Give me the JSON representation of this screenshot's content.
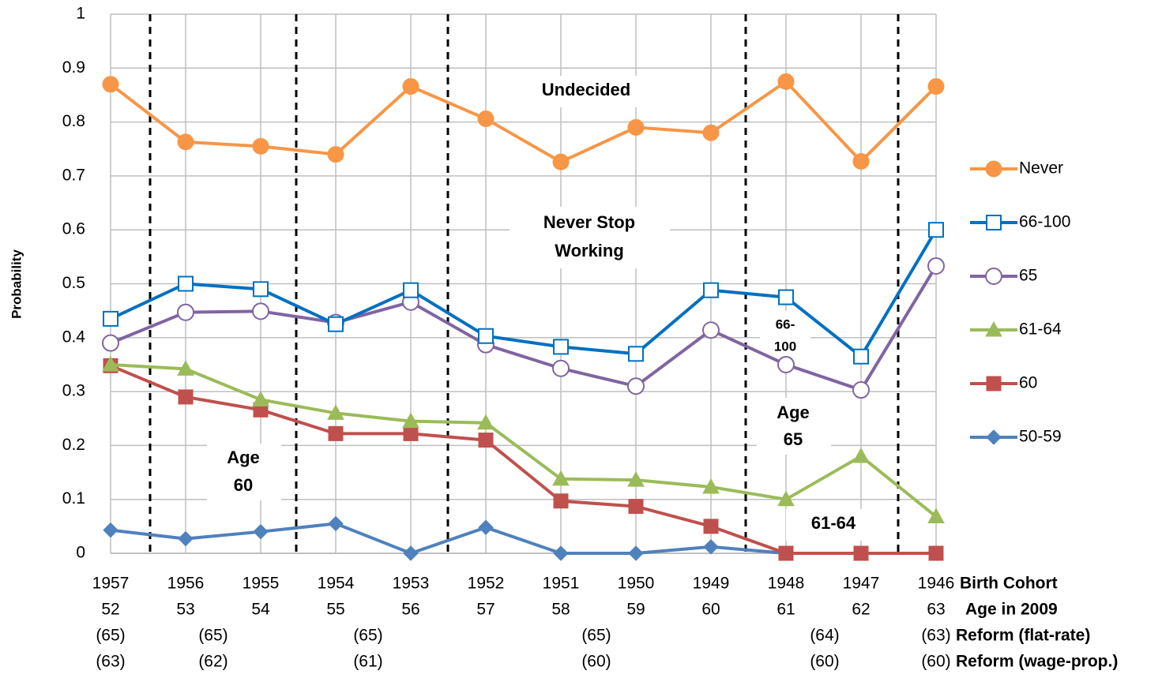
{
  "chart_data": {
    "type": "line",
    "y_label": "Probability",
    "categories": [
      "1957",
      "1956",
      "1955",
      "1954",
      "1953",
      "1952",
      "1951",
      "1950",
      "1949",
      "1948",
      "1947",
      "1946"
    ],
    "category_label": "Birth Cohort",
    "ages": [
      52,
      53,
      54,
      55,
      56,
      57,
      58,
      59,
      60,
      61,
      62,
      63
    ],
    "ages_label": "Age in 2009",
    "reform_rows": [
      {
        "name": "Reform (flat-rate)",
        "labels": [
          "(65)",
          "(65)",
          "(65)",
          "(65)",
          "(64)",
          "(63)"
        ]
      },
      {
        "name": "Reform (wage-prop.)",
        "labels": [
          "(63)",
          "(62)",
          "(61)",
          "(60)",
          "(60)",
          "(60)"
        ]
      }
    ],
    "ylim": [
      0,
      1
    ],
    "yticks": [
      0,
      0.1,
      0.2,
      0.3,
      0.4,
      0.5,
      0.6,
      0.7,
      0.8,
      0.9,
      1
    ],
    "grid": true,
    "legend": "right",
    "series": [
      {
        "name": "Never",
        "color": "#f79646",
        "marker": "circle",
        "filled": true,
        "values": [
          0.87,
          0.763,
          0.755,
          0.74,
          0.866,
          0.806,
          0.726,
          0.79,
          0.78,
          0.875,
          0.727,
          0.866
        ]
      },
      {
        "name": "66-100",
        "color": "#0070c0",
        "marker": "square",
        "filled": false,
        "values": [
          0.435,
          0.5,
          0.49,
          0.425,
          0.488,
          0.403,
          0.383,
          0.37,
          0.488,
          0.475,
          0.365,
          0.6
        ]
      },
      {
        "name": "65",
        "color": "#8064a2",
        "marker": "circle",
        "filled": false,
        "values": [
          0.39,
          0.447,
          0.449,
          0.428,
          0.466,
          0.387,
          0.343,
          0.31,
          0.414,
          0.35,
          0.303,
          0.533
        ]
      },
      {
        "name": "61-64",
        "color": "#9bbb59",
        "marker": "triangle",
        "filled": true,
        "values": [
          0.35,
          0.342,
          0.285,
          0.26,
          0.245,
          0.242,
          0.138,
          0.136,
          0.123,
          0.1,
          0.18,
          0.068
        ]
      },
      {
        "name": "60",
        "color": "#c0504d",
        "marker": "square",
        "filled": true,
        "values": [
          0.348,
          0.29,
          0.266,
          0.222,
          0.222,
          0.21,
          0.097,
          0.087,
          0.05,
          0,
          0,
          0
        ]
      },
      {
        "name": "50-59",
        "color": "#4f81bd",
        "marker": "diamond",
        "filled": true,
        "values": [
          0.043,
          0.027,
          0.04,
          0.055,
          0,
          0.048,
          0,
          0,
          0.012,
          0,
          0,
          0
        ]
      }
    ],
    "annotations": [
      [
        "Undecided"
      ],
      [
        "Never Stop",
        "Working"
      ],
      [
        "66-",
        "100"
      ],
      [
        "Age",
        "65"
      ],
      [
        "Age",
        "60"
      ],
      [
        "61-64"
      ]
    ]
  }
}
